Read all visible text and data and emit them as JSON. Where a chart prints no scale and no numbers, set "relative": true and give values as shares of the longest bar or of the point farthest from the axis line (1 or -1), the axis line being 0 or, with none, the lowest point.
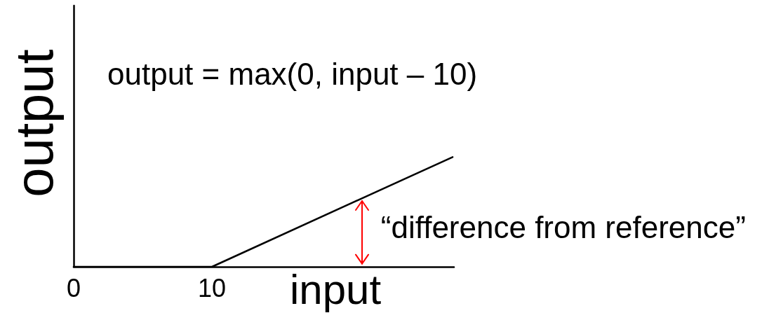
{
  "chart_data": {
    "type": "line",
    "xlabel": "input",
    "ylabel": "output",
    "annotations": [
      "output = max(0, input – 10)",
      "“difference from reference”"
    ],
    "x": [
      0,
      10,
      27.4
    ],
    "values": [
      0,
      0,
      1
    ],
    "color": "#000000",
    "relative": true,
    "xlim": [
      0,
      27.5
    ],
    "xticks": [
      0,
      10
    ],
    "tick_labels": "x",
    "marker": "none"
  }
}
